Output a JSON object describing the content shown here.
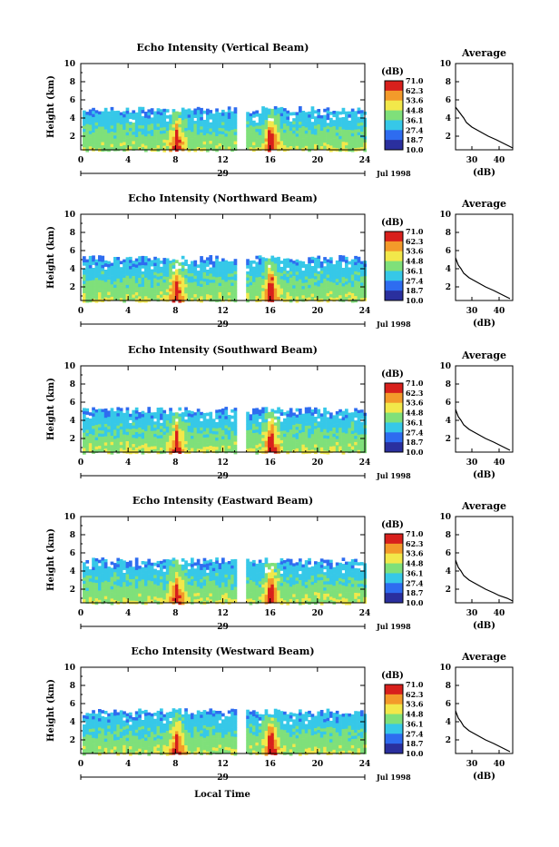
{
  "figure": {
    "xlabel": "Local Time",
    "date_label": "Jul 1998",
    "day_label": "29",
    "colorbar_unit": "(dB)",
    "colorbar_ticks": [
      "71.0",
      "62.3",
      "53.6",
      "44.8",
      "36.1",
      "27.4",
      "18.7",
      "10.0"
    ],
    "avg_title": "Average",
    "avg_xlabel": "(dB)",
    "colors": {
      "low": "#2a2f9e",
      "blue": "#2e6cf0",
      "cyan": "#36c8e8",
      "green": "#7fe07a",
      "yellow": "#f2e84a",
      "orange": "#f39a2a",
      "red": "#d8201c"
    }
  },
  "chart_data": [
    {
      "type": "heatmap",
      "title": "Echo Intensity (Vertical Beam)",
      "ylabel": "Height (km)",
      "xlim": [
        0,
        24
      ],
      "ylim": [
        0.5,
        10
      ],
      "xticks": [
        0,
        4,
        8,
        12,
        16,
        20,
        24
      ],
      "yticks": [
        2,
        4,
        6,
        8,
        10
      ],
      "colorbar_range": [
        10.0,
        71.0
      ],
      "echo_top_km": 5.0,
      "data_gap_hours": [
        13.2,
        13.8
      ],
      "intense_columns_hours": [
        8.0,
        16.0
      ],
      "average_profile": {
        "xlim": [
          24,
          45
        ],
        "ylim": [
          0.5,
          10
        ],
        "xticks": [
          30,
          40
        ],
        "yticks": [
          2,
          4,
          6,
          8,
          10
        ],
        "height_km": [
          0.7,
          1.0,
          1.3,
          1.6,
          2.0,
          2.5,
          3.0,
          3.5,
          4.0,
          4.4,
          4.8,
          5.2
        ],
        "intensity_db": [
          45,
          43,
          41,
          39,
          36,
          33,
          30,
          28,
          27,
          26,
          25,
          24
        ]
      }
    },
    {
      "type": "heatmap",
      "title": "Echo Intensity (Northward Beam)",
      "ylabel": "Height (km)",
      "xlim": [
        0,
        24
      ],
      "ylim": [
        0.5,
        10
      ],
      "xticks": [
        0,
        4,
        8,
        12,
        16,
        20,
        24
      ],
      "yticks": [
        2,
        4,
        6,
        8,
        10
      ],
      "colorbar_range": [
        10.0,
        71.0
      ],
      "echo_top_km": 5.2,
      "data_gap_hours": [
        13.2,
        13.8
      ],
      "intense_columns_hours": [
        8.0,
        16.0
      ],
      "average_profile": {
        "xlim": [
          24,
          45
        ],
        "ylim": [
          0.5,
          10
        ],
        "xticks": [
          30,
          40
        ],
        "yticks": [
          2,
          4,
          6,
          8,
          10
        ],
        "height_km": [
          0.7,
          1.0,
          1.3,
          1.6,
          2.0,
          2.5,
          3.0,
          3.5,
          4.0,
          4.4,
          4.8,
          5.2
        ],
        "intensity_db": [
          44,
          42,
          40,
          38,
          35,
          32,
          29,
          27,
          26,
          25,
          24.5,
          24
        ]
      }
    },
    {
      "type": "heatmap",
      "title": "Echo Intensity (Southward Beam)",
      "ylabel": "Height (km)",
      "xlim": [
        0,
        24
      ],
      "ylim": [
        0.5,
        10
      ],
      "xticks": [
        0,
        4,
        8,
        12,
        16,
        20,
        24
      ],
      "yticks": [
        2,
        4,
        6,
        8,
        10
      ],
      "colorbar_range": [
        10.0,
        71.0
      ],
      "echo_top_km": 5.2,
      "data_gap_hours": [
        13.2,
        13.8
      ],
      "intense_columns_hours": [
        8.0,
        16.0
      ],
      "average_profile": {
        "xlim": [
          24,
          45
        ],
        "ylim": [
          0.5,
          10
        ],
        "xticks": [
          30,
          40
        ],
        "yticks": [
          2,
          4,
          6,
          8,
          10
        ],
        "height_km": [
          0.7,
          1.0,
          1.3,
          1.6,
          2.0,
          2.5,
          3.0,
          3.5,
          4.0,
          4.4,
          4.8,
          5.2
        ],
        "intensity_db": [
          44,
          42,
          40,
          38,
          35,
          32,
          29,
          27,
          26,
          25,
          24.5,
          24
        ]
      }
    },
    {
      "type": "heatmap",
      "title": "Echo Intensity (Eastward Beam)",
      "ylabel": "Height (km)",
      "xlim": [
        0,
        24
      ],
      "ylim": [
        0.5,
        10
      ],
      "xticks": [
        0,
        4,
        8,
        12,
        16,
        20,
        24
      ],
      "yticks": [
        2,
        4,
        6,
        8,
        10
      ],
      "colorbar_range": [
        10.0,
        71.0
      ],
      "echo_top_km": 5.2,
      "data_gap_hours": [
        13.2,
        13.8
      ],
      "intense_columns_hours": [
        8.0,
        16.0
      ],
      "average_profile": {
        "xlim": [
          24,
          45
        ],
        "ylim": [
          0.5,
          10
        ],
        "xticks": [
          30,
          40
        ],
        "yticks": [
          2,
          4,
          6,
          8,
          10
        ],
        "height_km": [
          0.7,
          1.0,
          1.3,
          1.6,
          2.0,
          2.5,
          3.0,
          3.5,
          4.0,
          4.4,
          4.8,
          5.2
        ],
        "intensity_db": [
          45,
          43,
          40,
          38,
          35,
          32,
          29,
          27,
          26,
          25,
          24.5,
          24
        ]
      }
    },
    {
      "type": "heatmap",
      "title": "Echo Intensity (Westward Beam)",
      "ylabel": "Height (km)",
      "xlim": [
        0,
        24
      ],
      "ylim": [
        0.5,
        10
      ],
      "xticks": [
        0,
        4,
        8,
        12,
        16,
        20,
        24
      ],
      "yticks": [
        2,
        4,
        6,
        8,
        10
      ],
      "colorbar_range": [
        10.0,
        71.0
      ],
      "echo_top_km": 5.2,
      "data_gap_hours": [
        13.2,
        13.8
      ],
      "intense_columns_hours": [
        8.0,
        16.0
      ],
      "average_profile": {
        "xlim": [
          24,
          45
        ],
        "ylim": [
          0.5,
          10
        ],
        "xticks": [
          30,
          40
        ],
        "yticks": [
          2,
          4,
          6,
          8,
          10
        ],
        "height_km": [
          0.7,
          1.0,
          1.3,
          1.6,
          2.0,
          2.5,
          3.0,
          3.5,
          4.0,
          4.4,
          4.8,
          5.2
        ],
        "intensity_db": [
          44,
          42,
          40,
          38,
          35,
          32,
          29,
          27,
          26,
          25,
          24.5,
          24
        ]
      }
    }
  ]
}
